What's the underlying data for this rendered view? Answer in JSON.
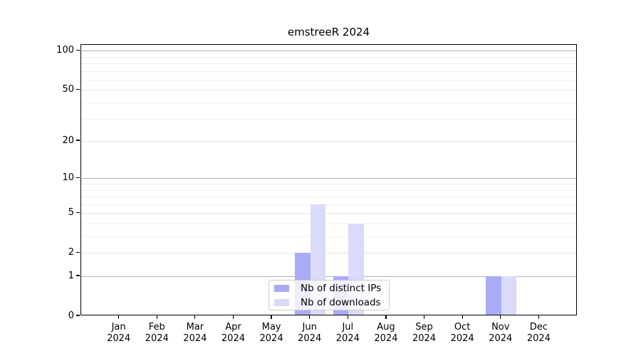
{
  "chart_data": {
    "type": "bar",
    "title": "emstreeR 2024",
    "categories": [
      "Jan 2024",
      "Feb 2024",
      "Mar 2024",
      "Apr 2024",
      "May 2024",
      "Jun 2024",
      "Jul 2024",
      "Aug 2024",
      "Sep 2024",
      "Oct 2024",
      "Nov 2024",
      "Dec 2024"
    ],
    "x_tick_line1": [
      "Jan",
      "Feb",
      "Mar",
      "Apr",
      "May",
      "Jun",
      "Jul",
      "Aug",
      "Sep",
      "Oct",
      "Nov",
      "Dec"
    ],
    "x_tick_line2": [
      "2024",
      "2024",
      "2024",
      "2024",
      "2024",
      "2024",
      "2024",
      "2024",
      "2024",
      "2024",
      "2024",
      "2024"
    ],
    "series": [
      {
        "name": "Nb of distinct IPs",
        "color": "#a9abf4",
        "values": [
          0,
          0,
          0,
          0,
          0,
          2,
          1,
          0,
          0,
          0,
          1,
          0
        ]
      },
      {
        "name": "Nb of downloads",
        "color": "#dadbf8",
        "values": [
          0,
          0,
          0,
          0,
          0,
          6,
          4,
          0,
          0,
          0,
          1,
          0
        ]
      }
    ],
    "yscale": "log1p",
    "ylim": [
      0,
      111
    ],
    "y_tick_labels": [
      0,
      1,
      2,
      5,
      10,
      20,
      50,
      100
    ],
    "y_gridlines_major": [
      1,
      10,
      100
    ],
    "y_gridlines_mid": [
      2,
      5,
      20,
      50
    ],
    "y_gridlines_minor": [
      3,
      4,
      6,
      7,
      8,
      9,
      30,
      40,
      60,
      70,
      80,
      90
    ],
    "grid": true,
    "legend": {
      "position": "lower center",
      "entries": [
        "Nb of distinct IPs",
        "Nb of downloads"
      ]
    }
  },
  "colors": {
    "background": "#ffffff",
    "axis": "#000000",
    "grid_major": "#b3b3b3",
    "grid_minor": "#f0f0f2",
    "legend_border": "#cccccc",
    "bar_distinct_ips": "#a9abf4",
    "bar_downloads": "#dadbf8"
  }
}
